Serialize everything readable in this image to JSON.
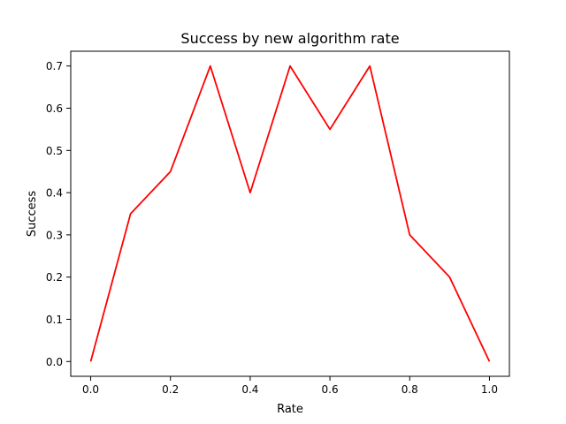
{
  "chart_data": {
    "type": "line",
    "title": "Success by new algorithm rate",
    "xlabel": "Rate",
    "ylabel": "Success",
    "xlim": [
      -0.05,
      1.05
    ],
    "ylim": [
      -0.035,
      0.735
    ],
    "xticks": [
      0.0,
      0.2,
      0.4,
      0.6,
      0.8,
      1.0
    ],
    "xtick_labels": [
      "0.0",
      "0.2",
      "0.4",
      "0.6",
      "0.8",
      "1.0"
    ],
    "yticks": [
      0.0,
      0.1,
      0.2,
      0.3,
      0.4,
      0.5,
      0.6,
      0.7
    ],
    "ytick_labels": [
      "0.0",
      "0.1",
      "0.2",
      "0.3",
      "0.4",
      "0.5",
      "0.6",
      "0.7"
    ],
    "grid": false,
    "series": [
      {
        "color": "#ff0000",
        "x": [
          0.0,
          0.1,
          0.2,
          0.3,
          0.4,
          0.5,
          0.6,
          0.7,
          0.8,
          0.9,
          1.0
        ],
        "y": [
          0.0,
          0.35,
          0.45,
          0.7,
          0.4,
          0.7,
          0.55,
          0.7,
          0.3,
          0.2,
          0.0
        ]
      }
    ]
  }
}
